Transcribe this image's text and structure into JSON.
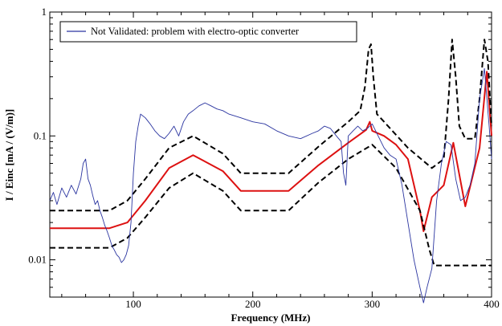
{
  "chart_data": {
    "type": "line",
    "title": "",
    "xlabel": "Frequency (MHz)",
    "ylabel": "I / Einc [mA / (V/m)]",
    "xlim": [
      30,
      400
    ],
    "ylim": [
      0.005,
      1
    ],
    "yscale": "log",
    "grid": false,
    "legend_position": "top-left",
    "x_ticks": [
      {
        "value": 100,
        "label": "100"
      },
      {
        "value": 200,
        "label": "200"
      },
      {
        "value": 300,
        "label": "300"
      },
      {
        "value": 400,
        "label": "400"
      }
    ],
    "y_ticks": [
      {
        "value": 0.01,
        "label": "0.01"
      },
      {
        "value": 0.1,
        "label": "0.1"
      },
      {
        "value": 1,
        "label": "1"
      }
    ],
    "series": [
      {
        "name": "Not Validated: problem with electro-optic converter",
        "color": "#2b35a0",
        "style": "solid",
        "x": [
          30,
          33,
          36,
          40,
          44,
          48,
          52,
          56,
          58,
          60,
          62,
          64,
          66,
          68,
          70,
          72,
          74,
          76,
          78,
          80,
          82,
          84,
          86,
          88,
          90,
          92,
          94,
          96,
          98,
          100,
          102,
          104,
          106,
          110,
          114,
          118,
          122,
          126,
          130,
          134,
          138,
          142,
          146,
          150,
          155,
          160,
          165,
          170,
          175,
          180,
          190,
          200,
          210,
          220,
          230,
          240,
          250,
          255,
          260,
          265,
          270,
          274,
          276,
          278,
          280,
          284,
          288,
          292,
          296,
          300,
          305,
          310,
          315,
          320,
          325,
          330,
          335,
          340,
          343,
          346,
          350,
          354,
          358,
          362,
          366,
          370,
          374,
          378,
          382,
          386,
          390,
          394,
          398,
          400
        ],
        "y": [
          0.03,
          0.035,
          0.028,
          0.038,
          0.032,
          0.04,
          0.034,
          0.045,
          0.06,
          0.065,
          0.045,
          0.04,
          0.033,
          0.028,
          0.03,
          0.025,
          0.022,
          0.019,
          0.017,
          0.015,
          0.013,
          0.012,
          0.011,
          0.0105,
          0.0095,
          0.01,
          0.011,
          0.013,
          0.02,
          0.05,
          0.09,
          0.12,
          0.15,
          0.14,
          0.125,
          0.11,
          0.1,
          0.095,
          0.105,
          0.12,
          0.1,
          0.13,
          0.15,
          0.16,
          0.175,
          0.185,
          0.175,
          0.165,
          0.16,
          0.15,
          0.14,
          0.13,
          0.125,
          0.11,
          0.1,
          0.095,
          0.105,
          0.11,
          0.12,
          0.115,
          0.1,
          0.09,
          0.05,
          0.04,
          0.1,
          0.11,
          0.12,
          0.11,
          0.115,
          0.125,
          0.1,
          0.08,
          0.07,
          0.065,
          0.04,
          0.02,
          0.01,
          0.006,
          0.0045,
          0.006,
          0.0085,
          0.03,
          0.06,
          0.09,
          0.085,
          0.045,
          0.03,
          0.032,
          0.04,
          0.06,
          0.2,
          0.35,
          0.12,
          0.065
        ]
      },
      {
        "name": "",
        "color": "#dd1111",
        "style": "solid",
        "x": [
          30,
          80,
          95,
          110,
          130,
          150,
          175,
          190,
          230,
          255,
          280,
          295,
          298,
          300,
          310,
          320,
          330,
          340,
          343,
          350,
          360,
          368,
          378,
          390,
          396,
          400
        ],
        "y": [
          0.018,
          0.018,
          0.02,
          0.03,
          0.055,
          0.07,
          0.052,
          0.036,
          0.036,
          0.058,
          0.088,
          0.112,
          0.13,
          0.11,
          0.1,
          0.085,
          0.065,
          0.025,
          0.017,
          0.032,
          0.04,
          0.088,
          0.027,
          0.08,
          0.33,
          0.1
        ]
      },
      {
        "name": "",
        "color": "#000000",
        "style": "dashed",
        "x": [
          30,
          80,
          95,
          110,
          130,
          150,
          175,
          190,
          230,
          255,
          280,
          290,
          294,
          297,
          299,
          301,
          304,
          310,
          330,
          350,
          360,
          364,
          367,
          370,
          373,
          378,
          386,
          390,
          394,
          397,
          400
        ],
        "y": [
          0.025,
          0.025,
          0.03,
          0.045,
          0.08,
          0.1,
          0.072,
          0.05,
          0.05,
          0.082,
          0.13,
          0.16,
          0.25,
          0.5,
          0.55,
          0.3,
          0.15,
          0.13,
          0.08,
          0.055,
          0.065,
          0.2,
          0.6,
          0.3,
          0.12,
          0.095,
          0.095,
          0.2,
          0.6,
          0.4,
          0.12
        ]
      },
      {
        "name": "",
        "color": "#000000",
        "style": "dashed",
        "x": [
          30,
          80,
          95,
          110,
          130,
          150,
          175,
          190,
          230,
          255,
          280,
          300,
          320,
          340,
          348,
          352,
          400
        ],
        "y": [
          0.0125,
          0.0125,
          0.015,
          0.022,
          0.038,
          0.05,
          0.036,
          0.025,
          0.025,
          0.042,
          0.065,
          0.085,
          0.055,
          0.025,
          0.012,
          0.009,
          0.009
        ]
      }
    ]
  }
}
